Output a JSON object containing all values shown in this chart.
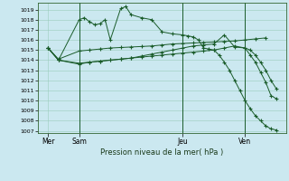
{
  "title": "Pression niveau de la mer( hPa )",
  "background_color": "#cbe8f0",
  "grid_color": "#99ccbb",
  "line_color": "#1a5c2a",
  "ylim_min": 1006.8,
  "ylim_max": 1019.7,
  "yticks": [
    1007,
    1008,
    1009,
    1010,
    1011,
    1012,
    1013,
    1014,
    1015,
    1016,
    1017,
    1018,
    1019
  ],
  "xlim_min": 0,
  "xlim_max": 24,
  "xtick_pos": [
    1,
    4,
    14,
    20
  ],
  "xtick_labels": [
    "Mer",
    "Sam",
    "Jeu",
    "Ven"
  ],
  "vline_pos": [
    4,
    14,
    20
  ],
  "s1_x": [
    1,
    2,
    4,
    5,
    6,
    7,
    8,
    9,
    10,
    11,
    12,
    13,
    14,
    15,
    16,
    17,
    18,
    19,
    20,
    21,
    22
  ],
  "s1_y": [
    1015.2,
    1014.1,
    1014.9,
    1015.0,
    1015.1,
    1015.2,
    1015.25,
    1015.3,
    1015.35,
    1015.4,
    1015.5,
    1015.6,
    1015.65,
    1015.7,
    1015.75,
    1015.8,
    1015.85,
    1015.9,
    1016.0,
    1016.1,
    1016.2
  ],
  "s2_x": [
    1,
    2,
    4,
    4.5,
    5,
    5.5,
    6,
    6.5,
    7,
    8,
    8.5,
    9,
    10,
    11,
    12,
    13,
    14,
    14.5,
    15,
    15.5,
    16,
    16.5,
    17,
    17.5,
    18,
    18.5,
    19,
    19.5,
    20,
    20.5,
    21,
    21.5,
    22,
    22.5,
    23
  ],
  "s2_y": [
    1015.2,
    1014.0,
    1018.0,
    1018.2,
    1017.8,
    1017.5,
    1017.6,
    1018.0,
    1016.0,
    1019.1,
    1019.3,
    1018.5,
    1018.2,
    1018.0,
    1016.8,
    1016.6,
    1016.5,
    1016.4,
    1016.3,
    1016.0,
    1015.2,
    1015.1,
    1015.0,
    1014.5,
    1013.8,
    1013.0,
    1012.0,
    1011.0,
    1010.0,
    1009.2,
    1008.5,
    1008.0,
    1007.5,
    1007.2,
    1007.1
  ],
  "s3_x": [
    1,
    2,
    4,
    5,
    6,
    7,
    8,
    9,
    10,
    11,
    12,
    13,
    14,
    15,
    16,
    17,
    18,
    19,
    20,
    20.5,
    21,
    21.5,
    22,
    22.5,
    23
  ],
  "s3_y": [
    1015.2,
    1014.0,
    1013.6,
    1013.8,
    1013.9,
    1014.0,
    1014.1,
    1014.2,
    1014.4,
    1014.6,
    1014.8,
    1015.0,
    1015.2,
    1015.4,
    1015.5,
    1015.6,
    1016.5,
    1015.3,
    1015.2,
    1014.5,
    1013.8,
    1012.8,
    1011.8,
    1010.5,
    1010.2
  ],
  "s4_x": [
    1,
    2,
    4,
    5,
    6,
    7,
    8,
    9,
    10,
    11,
    12,
    13,
    14,
    15,
    16,
    17,
    18,
    19,
    20,
    20.5,
    21,
    21.5,
    22,
    22.5,
    23
  ],
  "s4_y": [
    1015.2,
    1014.0,
    1013.7,
    1013.8,
    1013.9,
    1014.0,
    1014.1,
    1014.2,
    1014.3,
    1014.4,
    1014.5,
    1014.6,
    1014.7,
    1014.8,
    1014.9,
    1015.0,
    1015.2,
    1015.4,
    1015.2,
    1015.0,
    1014.5,
    1013.8,
    1013.0,
    1012.0,
    1011.2
  ]
}
